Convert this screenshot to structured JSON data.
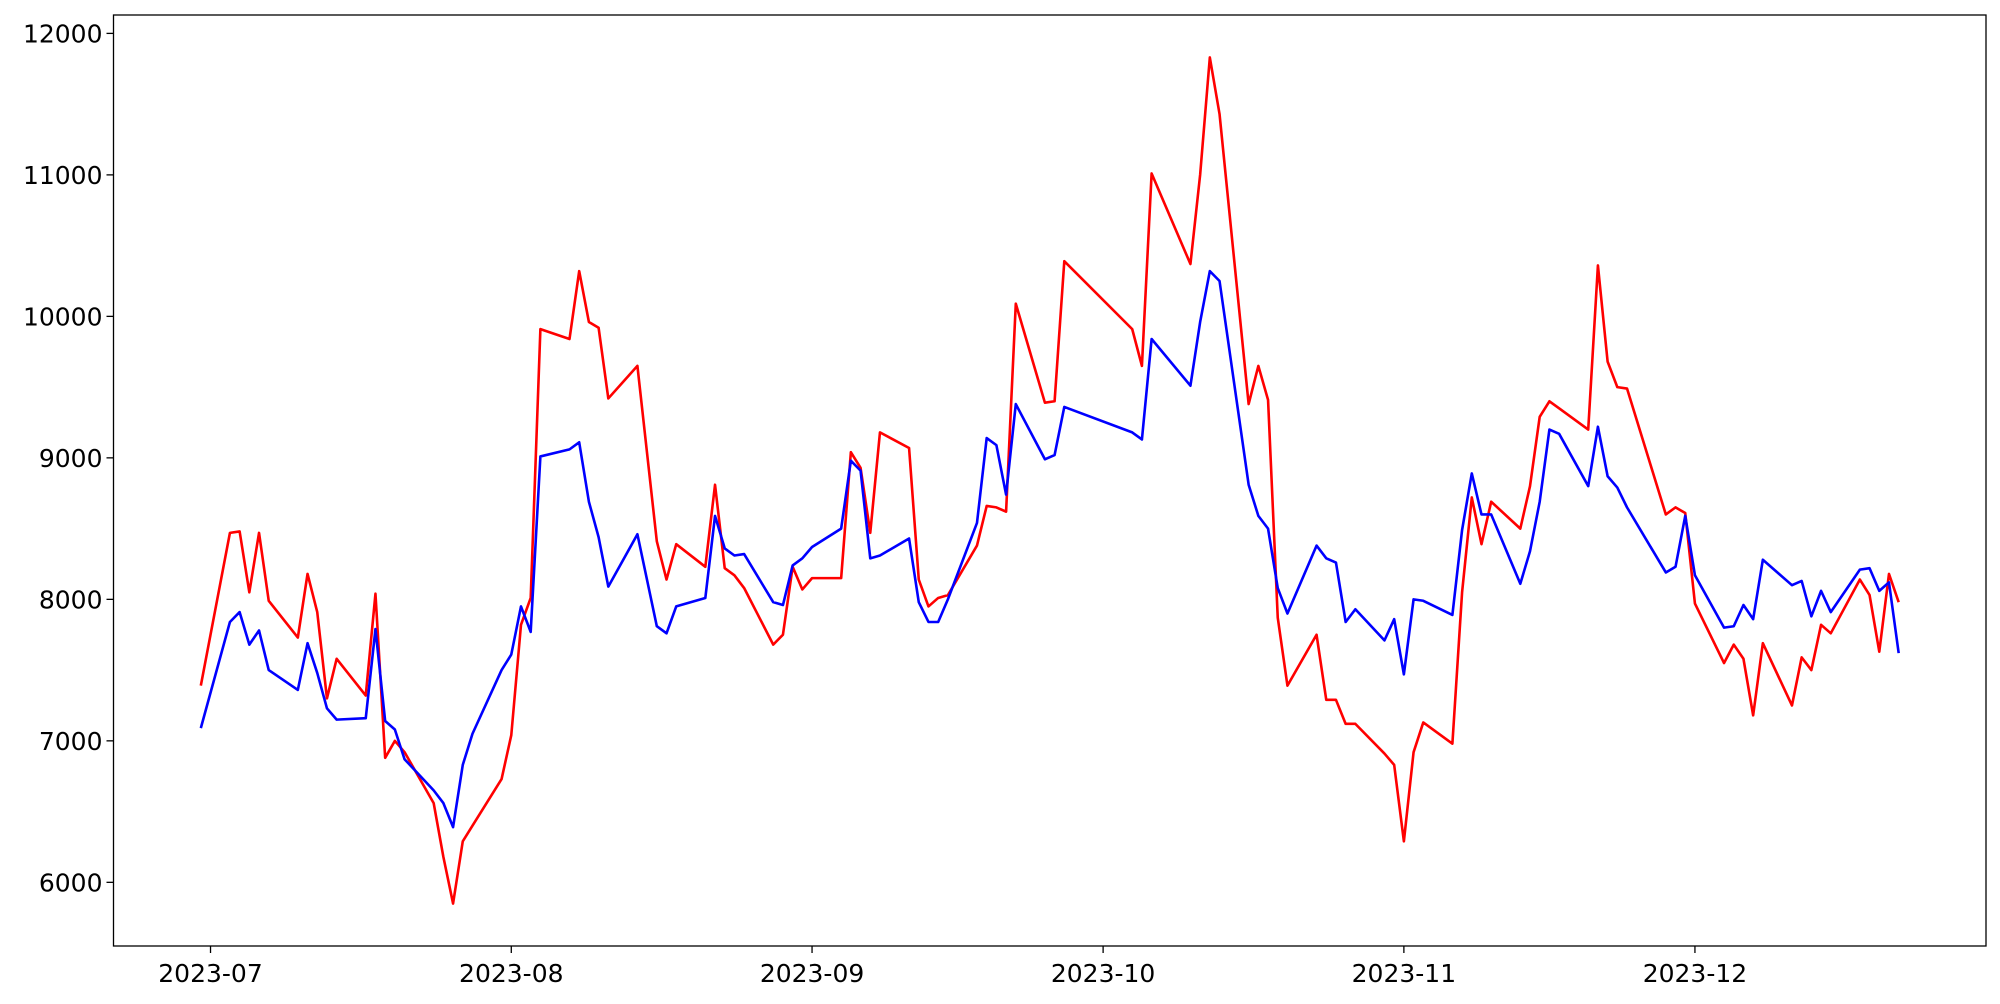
{
  "chart_data": {
    "type": "line",
    "x": [
      "2023-06-30",
      "2023-07-03",
      "2023-07-04",
      "2023-07-05",
      "2023-07-06",
      "2023-07-07",
      "2023-07-10",
      "2023-07-11",
      "2023-07-12",
      "2023-07-13",
      "2023-07-14",
      "2023-07-17",
      "2023-07-18",
      "2023-07-19",
      "2023-07-20",
      "2023-07-21",
      "2023-07-24",
      "2023-07-25",
      "2023-07-26",
      "2023-07-27",
      "2023-07-28",
      "2023-07-31",
      "2023-08-01",
      "2023-08-02",
      "2023-08-03",
      "2023-08-04",
      "2023-08-07",
      "2023-08-08",
      "2023-08-09",
      "2023-08-10",
      "2023-08-11",
      "2023-08-14",
      "2023-08-16",
      "2023-08-17",
      "2023-08-18",
      "2023-08-21",
      "2023-08-22",
      "2023-08-23",
      "2023-08-24",
      "2023-08-25",
      "2023-08-28",
      "2023-08-29",
      "2023-08-30",
      "2023-08-31",
      "2023-09-01",
      "2023-09-04",
      "2023-09-05",
      "2023-09-06",
      "2023-09-07",
      "2023-09-08",
      "2023-09-11",
      "2023-09-12",
      "2023-09-13",
      "2023-09-14",
      "2023-09-15",
      "2023-09-18",
      "2023-09-19",
      "2023-09-20",
      "2023-09-21",
      "2023-09-22",
      "2023-09-25",
      "2023-09-26",
      "2023-09-27",
      "2023-10-04",
      "2023-10-05",
      "2023-10-06",
      "2023-10-10",
      "2023-10-11",
      "2023-10-12",
      "2023-10-13",
      "2023-10-16",
      "2023-10-17",
      "2023-10-18",
      "2023-10-19",
      "2023-10-20",
      "2023-10-23",
      "2023-10-24",
      "2023-10-25",
      "2023-10-26",
      "2023-10-27",
      "2023-10-30",
      "2023-10-31",
      "2023-11-01",
      "2023-11-02",
      "2023-11-03",
      "2023-11-06",
      "2023-11-07",
      "2023-11-08",
      "2023-11-09",
      "2023-11-10",
      "2023-11-13",
      "2023-11-14",
      "2023-11-15",
      "2023-11-16",
      "2023-11-17",
      "2023-11-20",
      "2023-11-21",
      "2023-11-22",
      "2023-11-23",
      "2023-11-24",
      "2023-11-28",
      "2023-11-29",
      "2023-11-30",
      "2023-12-01",
      "2023-12-04",
      "2023-12-05",
      "2023-12-06",
      "2023-12-07",
      "2023-12-08",
      "2023-12-11",
      "2023-12-12",
      "2023-12-13",
      "2023-12-14",
      "2023-12-15",
      "2023-12-18",
      "2023-12-19",
      "2023-12-20",
      "2023-12-21",
      "2023-12-22"
    ],
    "series": [
      {
        "color": "#ff0000",
        "values": [
          7390,
          8470,
          8480,
          8050,
          8470,
          7990,
          7730,
          8180,
          7910,
          7300,
          7580,
          7320,
          8040,
          6880,
          7000,
          6920,
          6560,
          6180,
          5850,
          6290,
          6400,
          6730,
          7040,
          7820,
          8010,
          9910,
          9840,
          10320,
          9960,
          9920,
          9420,
          9650,
          8410,
          8140,
          8390,
          8230,
          8810,
          8220,
          8170,
          8080,
          7680,
          7750,
          8230,
          8070,
          8150,
          8150,
          9040,
          8930,
          8470,
          9180,
          9070,
          8140,
          7950,
          8010,
          8030,
          8380,
          8660,
          8650,
          8620,
          10090,
          9390,
          9400,
          10390,
          9910,
          9650,
          11010,
          10370,
          11000,
          11830,
          11430,
          9380,
          9650,
          9410,
          7870,
          7390,
          7750,
          7290,
          7290,
          7120,
          7120,
          6910,
          6830,
          6290,
          6920,
          7130,
          6980,
          8050,
          8720,
          8390,
          8690,
          8500,
          8800,
          9290,
          9400,
          9350,
          9200,
          10360,
          9680,
          9500,
          9490,
          8600,
          8650,
          8610,
          7970,
          7550,
          7680,
          7580,
          7180,
          7690,
          7250,
          7590,
          7500,
          7820,
          7760,
          8140,
          8030,
          7630,
          8180,
          7980
        ]
      },
      {
        "color": "#0000ff",
        "values": [
          7090,
          7840,
          7910,
          7680,
          7780,
          7500,
          7360,
          7690,
          7480,
          7230,
          7150,
          7160,
          7790,
          7140,
          7080,
          6870,
          6650,
          6560,
          6390,
          6830,
          7050,
          7500,
          7610,
          7950,
          7770,
          9010,
          9060,
          9110,
          8690,
          8440,
          8090,
          8460,
          7810,
          7760,
          7950,
          8010,
          8590,
          8360,
          8310,
          8320,
          7980,
          7960,
          8240,
          8290,
          8370,
          8500,
          8980,
          8910,
          8290,
          8310,
          8430,
          7980,
          7840,
          7840,
          8000,
          8540,
          9140,
          9090,
          8740,
          9380,
          8990,
          9020,
          9360,
          9180,
          9130,
          9840,
          9510,
          9960,
          10320,
          10250,
          8810,
          8590,
          8500,
          8080,
          7900,
          8380,
          8290,
          8260,
          7840,
          7930,
          7710,
          7860,
          7470,
          8000,
          7990,
          7890,
          8490,
          8890,
          8600,
          8600,
          8110,
          8340,
          8690,
          9200,
          9170,
          8800,
          9220,
          8870,
          8790,
          8650,
          8190,
          8230,
          8590,
          8170,
          7800,
          7810,
          7960,
          7860,
          8280,
          8100,
          8130,
          7880,
          8060,
          7910,
          8210,
          8220,
          8060,
          8120,
          7620
        ]
      }
    ],
    "xlim": [
      "2023-06-21",
      "2023-12-31"
    ],
    "xticks": [
      {
        "value": "2023-07-01",
        "label": "2023-07"
      },
      {
        "value": "2023-08-01",
        "label": "2023-08"
      },
      {
        "value": "2023-09-01",
        "label": "2023-09"
      },
      {
        "value": "2023-10-01",
        "label": "2023-10"
      },
      {
        "value": "2023-11-01",
        "label": "2023-11"
      },
      {
        "value": "2023-12-01",
        "label": "2023-12"
      }
    ],
    "ylim": [
      5550,
      12130
    ],
    "yticks": [
      6000,
      7000,
      8000,
      9000,
      10000,
      11000,
      12000
    ],
    "grid": false
  }
}
